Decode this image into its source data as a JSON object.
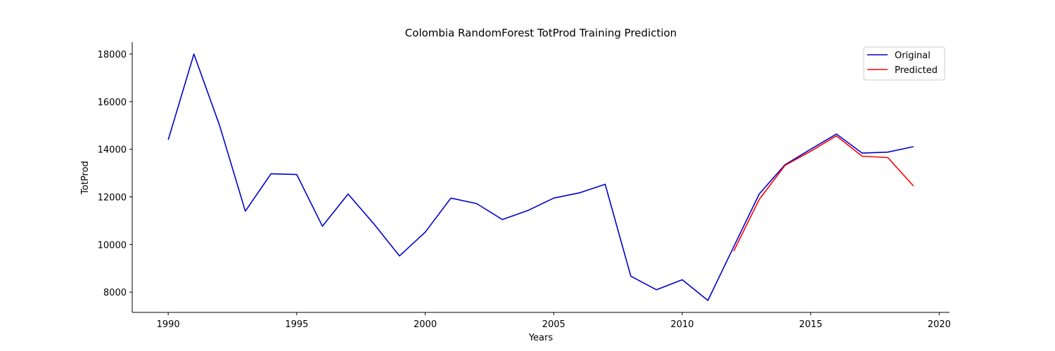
{
  "chart_data": {
    "type": "line",
    "title": "Colombia RandomForest TotProd Training Prediction",
    "xlabel": "Years",
    "ylabel": "TotProd",
    "xlim": [
      1988.6,
      2020.4
    ],
    "ylim": [
      7150,
      18500
    ],
    "xticks": [
      1990,
      1995,
      2000,
      2005,
      2010,
      2015,
      2020
    ],
    "yticks": [
      8000,
      10000,
      12000,
      14000,
      16000,
      18000
    ],
    "grid": false,
    "legend_position": "top-right",
    "series": [
      {
        "name": "Original",
        "color": "#0000cc",
        "x": [
          1990,
          1991,
          1992,
          1993,
          1994,
          1995,
          1996,
          1997,
          1998,
          1999,
          2000,
          2001,
          2002,
          2003,
          2004,
          2005,
          2006,
          2007,
          2008,
          2009,
          2010,
          2011,
          2012,
          2013,
          2014,
          2015,
          2016,
          2017,
          2018,
          2019
        ],
        "y": [
          14400,
          18000,
          15000,
          11400,
          12970,
          12940,
          10770,
          12120,
          10870,
          9520,
          10520,
          11950,
          11720,
          11050,
          11430,
          11950,
          12170,
          12530,
          8670,
          8100,
          8520,
          7650,
          9900,
          12130,
          13350,
          14000,
          14640,
          13840,
          13880,
          14110
        ]
      },
      {
        "name": "Predicted",
        "color": "#ff0000",
        "x": [
          2012,
          2013,
          2014,
          2015,
          2016,
          2017,
          2018,
          2019
        ],
        "y": [
          9720,
          11900,
          13320,
          13920,
          14560,
          13710,
          13650,
          12460
        ]
      }
    ]
  }
}
